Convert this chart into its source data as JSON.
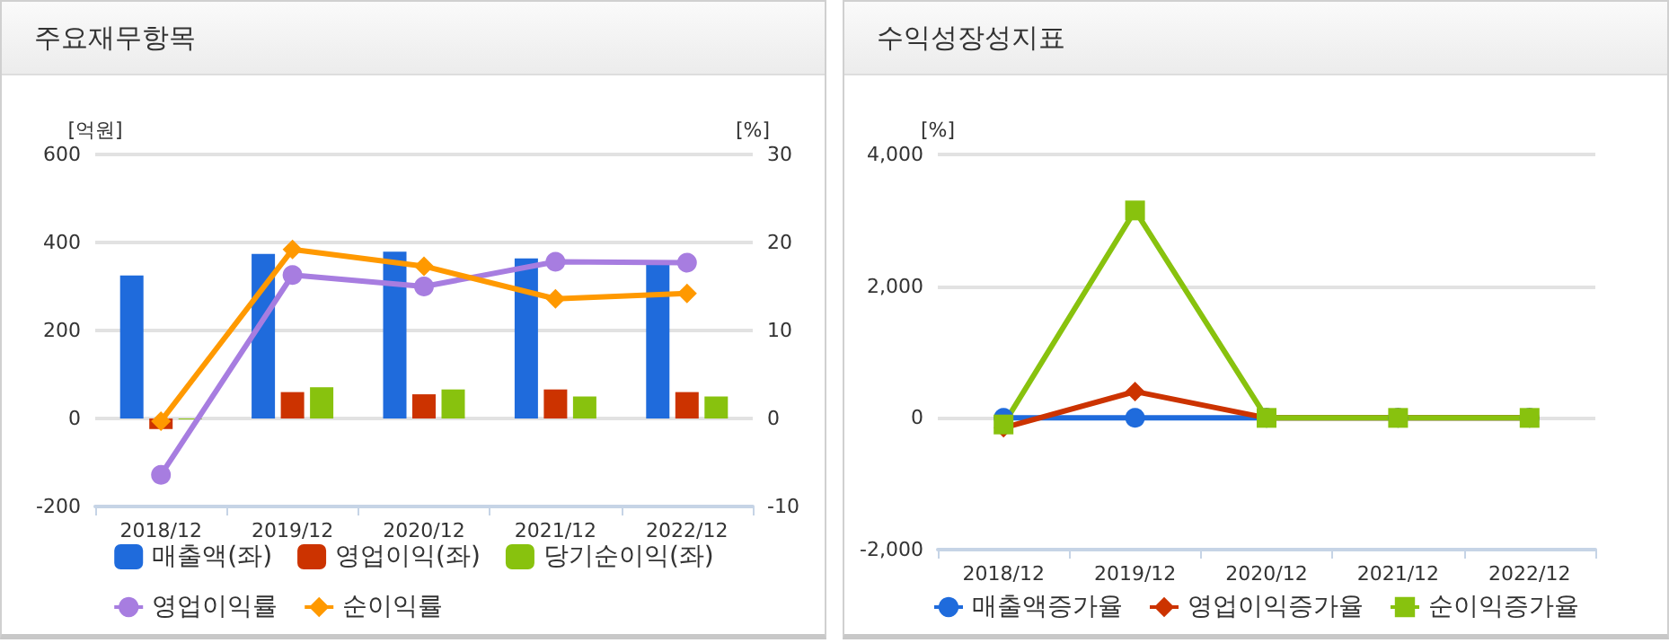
{
  "chart_data": [
    {
      "type": "bar",
      "title": "주요재무항목",
      "ylabel": "[억원]",
      "y2label": "[%]",
      "categories": [
        "2018/12",
        "2019/12",
        "2020/12",
        "2021/12",
        "2022/12"
      ],
      "series": [
        {
          "name": "매출액(좌)",
          "type": "bar",
          "color": "#1f6bdc",
          "values": [
            325,
            374,
            379,
            364,
            353
          ]
        },
        {
          "name": "영업이익(좌)",
          "type": "bar",
          "color": "#cc3300",
          "values": [
            -24,
            60,
            55,
            66,
            60
          ]
        },
        {
          "name": "당기순이익(좌)",
          "type": "bar",
          "color": "#88c20e",
          "values": [
            -2,
            71,
            66,
            50,
            50
          ]
        },
        {
          "name": "영업이익률",
          "type": "line",
          "axis": "y2",
          "marker": "circle",
          "color": "#a77de0",
          "values": [
            -6.4,
            16.3,
            15.0,
            17.8,
            17.7
          ]
        },
        {
          "name": "순이익률",
          "type": "line",
          "axis": "y2",
          "marker": "diamond",
          "color": "#ff9900",
          "values": [
            -0.3,
            19.2,
            17.3,
            13.6,
            14.2
          ]
        }
      ],
      "ylim": [
        -200,
        600
      ],
      "yticks": [
        -200,
        0,
        200,
        400,
        600
      ],
      "y2lim": [
        -10,
        30
      ],
      "y2ticks": [
        -10,
        0,
        10,
        20,
        30
      ],
      "grid": "y",
      "legend": "bottom"
    },
    {
      "type": "line",
      "title": "수익성장성지표",
      "ylabel": "[%]",
      "categories": [
        "2018/12",
        "2019/12",
        "2020/12",
        "2021/12",
        "2022/12"
      ],
      "series": [
        {
          "name": "매출액증가율",
          "marker": "circle",
          "color": "#1f6bdc",
          "values": [
            0,
            0,
            0,
            0,
            0
          ]
        },
        {
          "name": "영업이익증가율",
          "marker": "diamond",
          "color": "#cc3300",
          "values": [
            -150,
            400,
            0,
            0,
            0
          ]
        },
        {
          "name": "순이익증가율",
          "marker": "square",
          "color": "#88c20e",
          "values": [
            -100,
            3150,
            0,
            0,
            0
          ]
        }
      ],
      "ylim": [
        -2000,
        4000
      ],
      "yticks": [
        {
          "value": -2000,
          "label": "-2,000"
        },
        0,
        {
          "value": 2000,
          "label": "2,000"
        },
        {
          "value": 4000,
          "label": "4,000"
        }
      ],
      "grid": "y",
      "legend": "bottom"
    }
  ]
}
